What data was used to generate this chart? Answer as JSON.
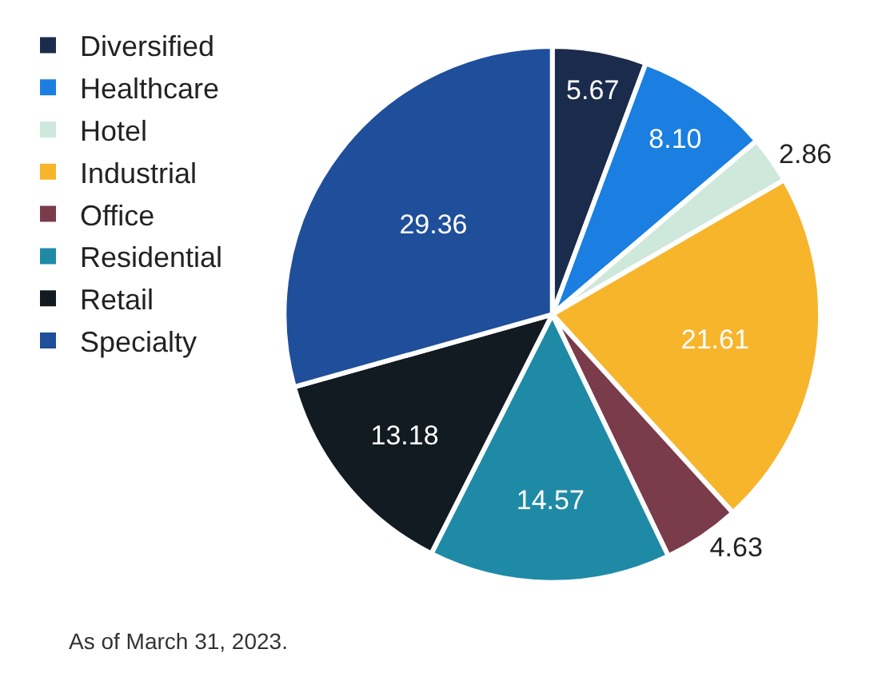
{
  "chart_data": {
    "type": "pie",
    "categories": [
      "Diversified",
      "Healthcare",
      "Hotel",
      "Industrial",
      "Office",
      "Residential",
      "Retail",
      "Specialty"
    ],
    "values": [
      5.67,
      8.1,
      2.86,
      21.61,
      4.63,
      14.57,
      13.18,
      29.36
    ],
    "colors": [
      "#1b2b4b",
      "#1a7fe0",
      "#cfe8dc",
      "#f7b52c",
      "#7a3b4a",
      "#1f8aa6",
      "#121a22",
      "#1f4e9a"
    ],
    "value_labels": [
      "5.67",
      "8.10",
      "2.86",
      "21.61",
      "4.63",
      "14.57",
      "13.18",
      "29.36"
    ],
    "legend": "left",
    "annotations": [
      "As of March 31, 2023."
    ]
  }
}
